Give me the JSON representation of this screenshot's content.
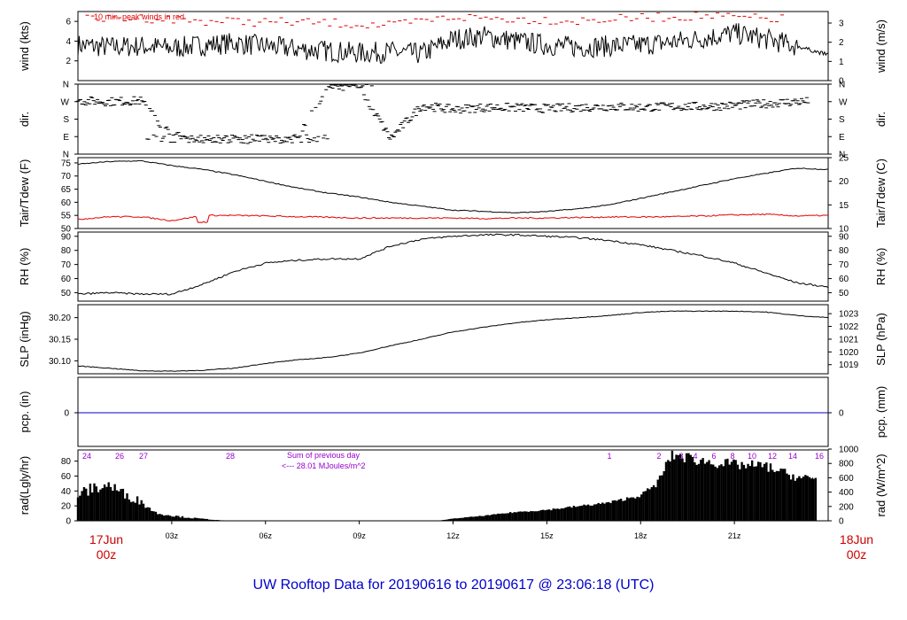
{
  "title": "UW Rooftop Data for 20190616  to  20190617 @ 23:06:18  (UTC)",
  "time_axis": {
    "ticks": [
      "03z",
      "06z",
      "09z",
      "12z",
      "15z",
      "18z",
      "21z"
    ],
    "start_label": [
      "17Jun",
      "00z"
    ],
    "end_label": [
      "18Jun",
      "00z"
    ],
    "range_hours": [
      0,
      24
    ]
  },
  "colors": {
    "peak": "#e00000",
    "dew": "#e00000",
    "pcp": "#0000cc",
    "rad_labels": "#9900cc",
    "title": "#0000cc",
    "edge_labels": "#cc0000"
  },
  "panels": {
    "wind": {
      "ylabel_left": "wind (kts)",
      "ylabel_right": "wind (m/s)",
      "ticks_left": [
        "2",
        "4",
        "6"
      ],
      "ticks_left_vals": [
        2,
        4,
        6
      ],
      "ticks_right": [
        "0",
        "1",
        "2",
        "3"
      ],
      "ticks_right_vals": [
        0,
        1,
        2,
        3
      ],
      "ylim": [
        0,
        7
      ],
      "note": "10 min. peak winds in red"
    },
    "dir": {
      "ylabel_left": "dir.",
      "ylabel_right": "dir.",
      "ticks": [
        "N",
        "E",
        "S",
        "W",
        "N"
      ],
      "ticks_vals": [
        0,
        90,
        180,
        270,
        360
      ]
    },
    "temp": {
      "ylabel_left": "Tair/Tdew (F)",
      "ylabel_right": "Tair/Tdew (C)",
      "ticks_left": [
        "50",
        "55",
        "60",
        "65",
        "70",
        "75"
      ],
      "ticks_left_vals": [
        50,
        55,
        60,
        65,
        70,
        75
      ],
      "ticks_right": [
        "10",
        "15",
        "20",
        "25"
      ],
      "ticks_right_vals": [
        10,
        15,
        20,
        25
      ],
      "ylim": [
        50,
        77
      ]
    },
    "rh": {
      "ylabel_left": "RH (%)",
      "ylabel_right": "RH (%)",
      "ticks": [
        "50",
        "60",
        "70",
        "80",
        "90"
      ],
      "ticks_vals": [
        50,
        60,
        70,
        80,
        90
      ],
      "ylim": [
        44,
        93
      ]
    },
    "slp": {
      "ylabel_left": "SLP (inHg)",
      "ylabel_right": "SLP (hPa)",
      "ticks_left": [
        "30.10",
        "30.15",
        "30.20"
      ],
      "ticks_left_vals": [
        30.1,
        30.15,
        30.2
      ],
      "ticks_right": [
        "1019",
        "1020",
        "1021",
        "1022",
        "1023"
      ],
      "ticks_right_vals": [
        1019,
        1020,
        1021,
        1022,
        1023
      ],
      "ylim": [
        30.07,
        30.23
      ]
    },
    "pcp": {
      "ylabel_left": "pcp. (in)",
      "ylabel_right": "pcp. (mm)",
      "tick_left": "0",
      "tick_right": "0"
    },
    "rad": {
      "ylabel_left": "rad(Lgly/hr)",
      "ylabel_right": "rad (W/m^2)",
      "ticks_left": [
        "0",
        "20",
        "40",
        "60",
        "80"
      ],
      "ticks_left_vals": [
        0,
        20,
        40,
        60,
        80
      ],
      "ticks_right": [
        "0",
        "200",
        "400",
        "600",
        "800",
        "1000"
      ],
      "ticks_right_vals": [
        0,
        200,
        400,
        600,
        800,
        1000
      ],
      "ylim": [
        0,
        95
      ],
      "sum_line1": "Sum of previous day",
      "sum_line2": "<--- 28.01 MJoules/m^2",
      "day_labels_prev": [
        "24",
        "26",
        "27",
        "28"
      ],
      "day_labels_next": [
        "1",
        "2",
        "3",
        "4",
        "6",
        "8",
        "10",
        "12",
        "14",
        "16"
      ]
    }
  },
  "chart_data": [
    {
      "type": "line",
      "name": "wind",
      "ylabel": "wind (kts)",
      "x": [
        0,
        1,
        2,
        3,
        4,
        5,
        6,
        7,
        8,
        9,
        10,
        11,
        12,
        13,
        14,
        15,
        16,
        17,
        18,
        19,
        20,
        21,
        22,
        23,
        24
      ],
      "series": [
        {
          "values": [
            3.6,
            3.4,
            3.5,
            3.3,
            3.6,
            3.8,
            3.5,
            3.2,
            3.0,
            2.8,
            2.9,
            2.7,
            4.2,
            4.5,
            4.0,
            3.6,
            3.4,
            3.5,
            3.6,
            3.9,
            4.3,
            4.8,
            4.2,
            3.5,
            2.6
          ]
        }
      ]
    },
    {
      "type": "line",
      "name": "peak",
      "x": [
        0,
        2,
        4,
        6,
        8,
        10,
        12,
        14,
        16,
        18,
        20,
        22
      ],
      "series": [
        {
          "values": [
            6.6,
            6.8,
            6.5,
            6.4,
            6.3,
            6.0,
            6.9,
            6.7,
            6.5,
            6.8,
            7.0,
            6.7
          ]
        }
      ]
    },
    {
      "type": "scatter",
      "name": "dir",
      "x": [
        0,
        1,
        2,
        3,
        4,
        5,
        6,
        7,
        8,
        9,
        10,
        11,
        12,
        13,
        14,
        15,
        16,
        17,
        18,
        19,
        20,
        21,
        22,
        23
      ],
      "series": [
        {
          "values": [
            275,
            270,
            275,
            95,
            80,
            75,
            70,
            80,
            350,
            345,
            80,
            250,
            230,
            240,
            240,
            235,
            240,
            245,
            240,
            245,
            245,
            250,
            260,
            270
          ]
        }
      ]
    },
    {
      "type": "line",
      "name": "temp",
      "x": [
        0,
        1,
        2,
        3,
        4,
        5,
        6,
        7,
        8,
        9,
        10,
        11,
        12,
        13,
        14,
        15,
        16,
        17,
        18,
        19,
        20,
        21,
        22,
        23,
        24
      ],
      "series": [
        {
          "name": "Tair",
          "values": [
            74.5,
            75.5,
            75.8,
            74.0,
            72.5,
            70.5,
            68.0,
            65.5,
            63.5,
            62.0,
            60.0,
            58.5,
            57.0,
            56.5,
            56.0,
            56.5,
            57.5,
            59.0,
            61.5,
            64.0,
            66.5,
            69.0,
            71.0,
            73.0,
            72.5
          ]
        },
        {
          "name": "Tdew",
          "values": [
            53.5,
            54.5,
            54.5,
            53.0,
            55.0,
            55.0,
            54.8,
            54.5,
            54.3,
            54.0,
            54.0,
            54.0,
            54.0,
            53.8,
            54.0,
            54.0,
            54.2,
            54.4,
            54.4,
            54.5,
            54.8,
            55.2,
            55.4,
            54.8,
            55.0
          ]
        }
      ]
    },
    {
      "type": "line",
      "name": "rh",
      "x": [
        0,
        1,
        2,
        3,
        4,
        5,
        6,
        7,
        8,
        9,
        10,
        11,
        12,
        13,
        14,
        15,
        16,
        17,
        18,
        19,
        20,
        21,
        22,
        23,
        24
      ],
      "series": [
        {
          "values": [
            49,
            50,
            49,
            49,
            56,
            65,
            71,
            73,
            74,
            74,
            83,
            88,
            90,
            91,
            91,
            90,
            89,
            87,
            84,
            80,
            76,
            71,
            64,
            57,
            54
          ]
        }
      ]
    },
    {
      "type": "line",
      "name": "slp",
      "x": [
        0,
        1,
        2,
        3,
        4,
        5,
        6,
        7,
        8,
        9,
        10,
        11,
        12,
        13,
        14,
        15,
        16,
        17,
        18,
        19,
        20,
        21,
        22,
        23,
        24
      ],
      "series": [
        {
          "values": [
            30.088,
            30.083,
            30.077,
            30.076,
            30.078,
            30.083,
            30.094,
            30.102,
            30.108,
            30.118,
            30.135,
            30.15,
            30.167,
            30.178,
            30.188,
            30.195,
            30.2,
            30.205,
            30.212,
            30.215,
            30.215,
            30.215,
            30.213,
            30.205,
            30.2
          ]
        }
      ]
    },
    {
      "type": "line",
      "name": "pcp",
      "x": [
        0,
        24
      ],
      "series": [
        {
          "values": [
            0,
            0
          ]
        }
      ]
    },
    {
      "type": "area",
      "name": "rad",
      "x": [
        0,
        0.5,
        1,
        1.5,
        2,
        2.5,
        3,
        3.5,
        4,
        4.5,
        5,
        11.5,
        12,
        13,
        14,
        15,
        16,
        17,
        18,
        18.5,
        19,
        20,
        21,
        22,
        23,
        23.5,
        24
      ],
      "series": [
        {
          "values": [
            40,
            50,
            55,
            40,
            30,
            12,
            8,
            5,
            3,
            1,
            0,
            0,
            3,
            7,
            12,
            15,
            20,
            25,
            35,
            50,
            95,
            85,
            80,
            78,
            62,
            60,
            58
          ]
        }
      ]
    }
  ]
}
